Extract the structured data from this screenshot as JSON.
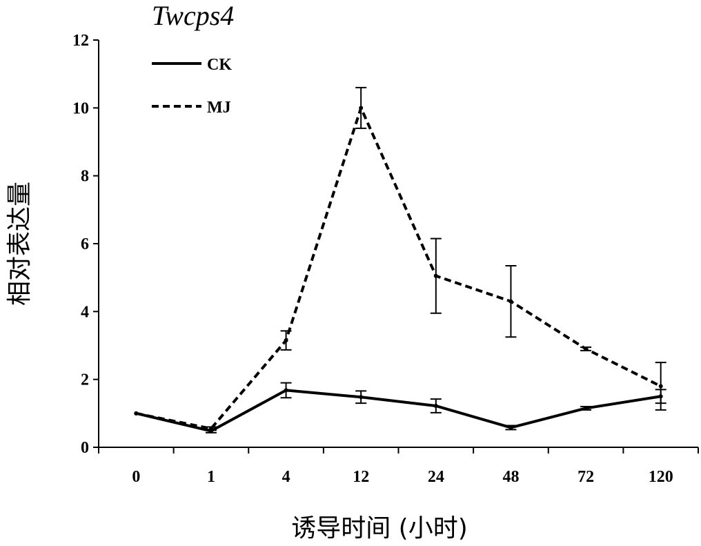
{
  "chart_data": {
    "type": "line",
    "title": "Twcps4",
    "xlabel": "诱导时间 (小时)",
    "ylabel": "相对表达量",
    "categories": [
      "0",
      "1",
      "4",
      "12",
      "24",
      "48",
      "72",
      "120"
    ],
    "ylim": [
      0,
      12
    ],
    "yticks": [
      "0",
      "2",
      "4",
      "6",
      "8",
      "10",
      "12"
    ],
    "grid": false,
    "legend_position": "top-left",
    "series": [
      {
        "name": "CK",
        "line_style": "solid",
        "color": "#000000",
        "values": [
          1.0,
          0.48,
          1.68,
          1.48,
          1.22,
          0.58,
          1.15,
          1.5
        ],
        "errors": [
          0.0,
          0.05,
          0.22,
          0.18,
          0.2,
          0.06,
          0.05,
          0.2
        ]
      },
      {
        "name": "MJ",
        "line_style": "dashed",
        "color": "#000000",
        "values": [
          1.0,
          0.55,
          3.15,
          10.0,
          5.05,
          4.3,
          2.9,
          1.8
        ],
        "errors": [
          0.0,
          0.05,
          0.28,
          0.6,
          1.1,
          1.05,
          0.05,
          0.7
        ]
      }
    ]
  }
}
